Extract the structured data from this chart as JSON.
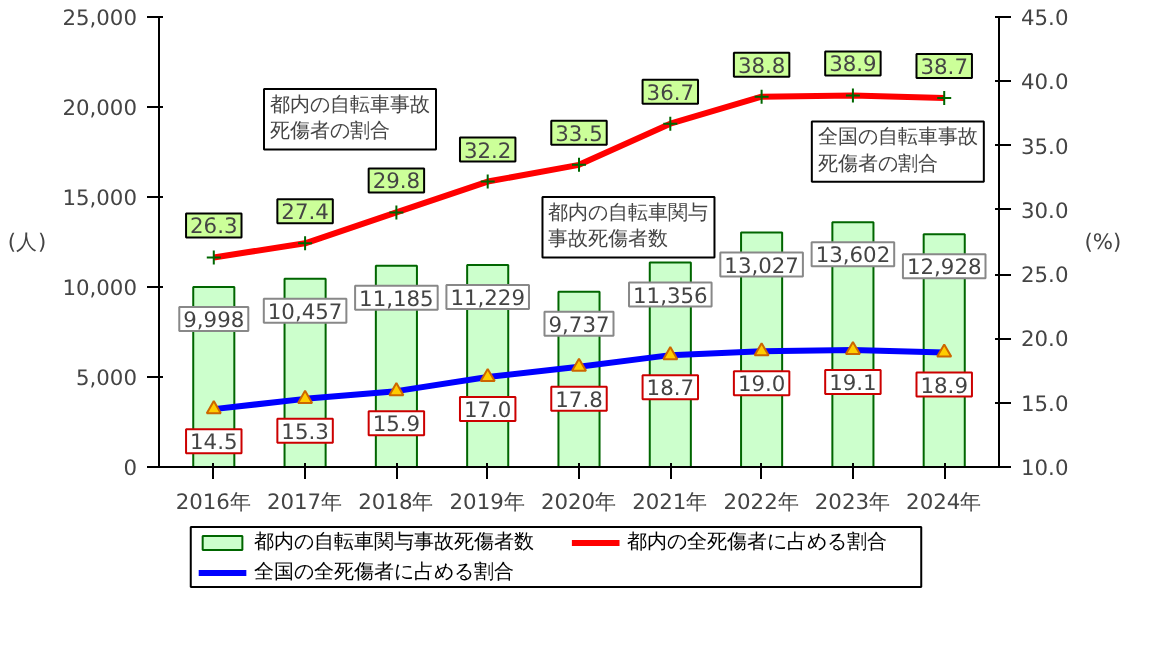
{
  "chart_data": {
    "type": "bar",
    "categories": [
      "2016年",
      "2017年",
      "2018年",
      "2019年",
      "2020年",
      "2021年",
      "2022年",
      "2023年",
      "2024年"
    ],
    "ylabel": "(人)",
    "y2label": "(%)",
    "ylim": [
      0,
      25000
    ],
    "yticks": [
      0,
      {
        "value": 5000,
        "label": "5,000"
      },
      {
        "value": 10000,
        "label": "10,000"
      },
      {
        "value": 15000,
        "label": "15,000"
      },
      {
        "value": 20000,
        "label": "20,000"
      },
      {
        "value": 25000,
        "label": "25,000"
      }
    ],
    "y2lim": [
      10,
      45
    ],
    "y2ticks": [
      {
        "value": 10,
        "label": "10.0"
      },
      {
        "value": 15,
        "label": "15.0"
      },
      {
        "value": 20,
        "label": "20.0"
      },
      {
        "value": 25,
        "label": "25.0"
      },
      {
        "value": 30,
        "label": "30.0"
      },
      {
        "value": 35,
        "label": "35.0"
      },
      {
        "value": 40,
        "label": "40.0"
      },
      {
        "value": 45,
        "label": "45.0"
      }
    ],
    "series": [
      {
        "name": "都内の自転車関与事故死傷者数",
        "color": "#ccffcc",
        "values": [
          9998,
          10457,
          11185,
          11229,
          9737,
          11356,
          13027,
          13602,
          12928
        ],
        "value_labels": [
          "9,998",
          "10,457",
          "11,185",
          "11,229",
          "9,737",
          "11,356",
          "13,027",
          "13,602",
          "12,928"
        ]
      },
      {
        "name": "都内の全死傷者に占める割合",
        "type": "line",
        "axis": "y2",
        "color": "#ff0000",
        "marker": "cross",
        "values": [
          26.3,
          27.4,
          29.8,
          32.2,
          33.5,
          36.7,
          38.8,
          38.9,
          38.7
        ],
        "value_labels": [
          "26.3",
          "27.4",
          "29.8",
          "32.2",
          "33.5",
          "36.7",
          "38.8",
          "38.9",
          "38.7"
        ]
      },
      {
        "name": "全国の全死傷者に占める割合",
        "type": "line",
        "axis": "y2",
        "color": "#0000ff",
        "marker": "triangle",
        "values": [
          14.5,
          15.3,
          15.9,
          17.0,
          17.8,
          18.7,
          19.0,
          19.1,
          18.9
        ],
        "value_labels": [
          "14.5",
          "15.3",
          "15.9",
          "17.0",
          "17.8",
          "18.7",
          "19.0",
          "19.1",
          "18.9"
        ]
      }
    ],
    "annotations": [
      "都内の自転車事故死傷者の割合",
      "都内の自転車関与事故死傷者数",
      "全国の自転車事故死傷者の割合"
    ],
    "grid": false,
    "legend": "bottom"
  }
}
